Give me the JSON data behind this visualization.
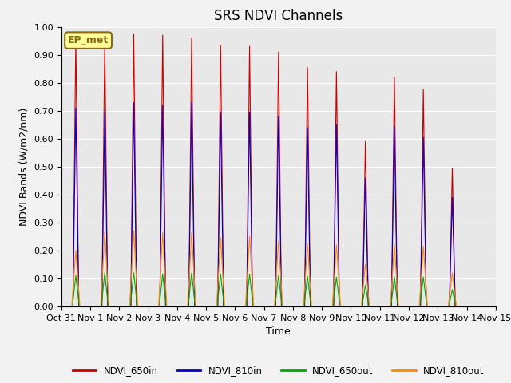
{
  "title": "SRS NDVI Channels",
  "ylabel": "NDVI Bands (W/m2/nm)",
  "xlabel": "Time",
  "xlim_start": 0,
  "xlim_end": 15,
  "ylim": [
    0.0,
    1.0
  ],
  "yticks": [
    0.0,
    0.1,
    0.2,
    0.3,
    0.4,
    0.5,
    0.6,
    0.7,
    0.8,
    0.9,
    1.0
  ],
  "xtick_labels": [
    "Oct 31",
    "Nov 1",
    "Nov 2",
    "Nov 3",
    "Nov 4",
    "Nov 5",
    "Nov 6",
    "Nov 7",
    "Nov 8",
    "Nov 9",
    "Nov 10",
    "Nov 11",
    "Nov 12",
    "Nov 13",
    "Nov 14",
    "Nov 15"
  ],
  "xtick_positions": [
    0,
    1,
    2,
    3,
    4,
    5,
    6,
    7,
    8,
    9,
    10,
    11,
    12,
    13,
    14,
    15
  ],
  "annotation_text": "EP_met",
  "annotation_bg": "#FFFF99",
  "annotation_border": "#8B6914",
  "colors": {
    "NDVI_650in": "#CC0000",
    "NDVI_810in": "#0000CC",
    "NDVI_650out": "#00AA00",
    "NDVI_810out": "#FF8800"
  },
  "peaks_650in": [
    0.96,
    0.95,
    0.975,
    0.97,
    0.96,
    0.935,
    0.93,
    0.91,
    0.855,
    0.84,
    0.59,
    0.82,
    0.775,
    0.495,
    0.0
  ],
  "peaks_810in": [
    0.71,
    0.695,
    0.73,
    0.72,
    0.73,
    0.695,
    0.695,
    0.68,
    0.64,
    0.65,
    0.46,
    0.645,
    0.605,
    0.39,
    0.0
  ],
  "peaks_650out": [
    0.11,
    0.12,
    0.12,
    0.115,
    0.12,
    0.115,
    0.115,
    0.11,
    0.108,
    0.105,
    0.075,
    0.105,
    0.105,
    0.06,
    0.0
  ],
  "peaks_810out": [
    0.2,
    0.265,
    0.27,
    0.265,
    0.265,
    0.245,
    0.25,
    0.235,
    0.225,
    0.22,
    0.15,
    0.22,
    0.215,
    0.12,
    0.0
  ],
  "bg_color": "#E8E8E8",
  "fig_bg_color": "#F2F2F2",
  "grid_color": "#FFFFFF",
  "title_fontsize": 12,
  "label_fontsize": 9,
  "tick_fontsize": 8
}
